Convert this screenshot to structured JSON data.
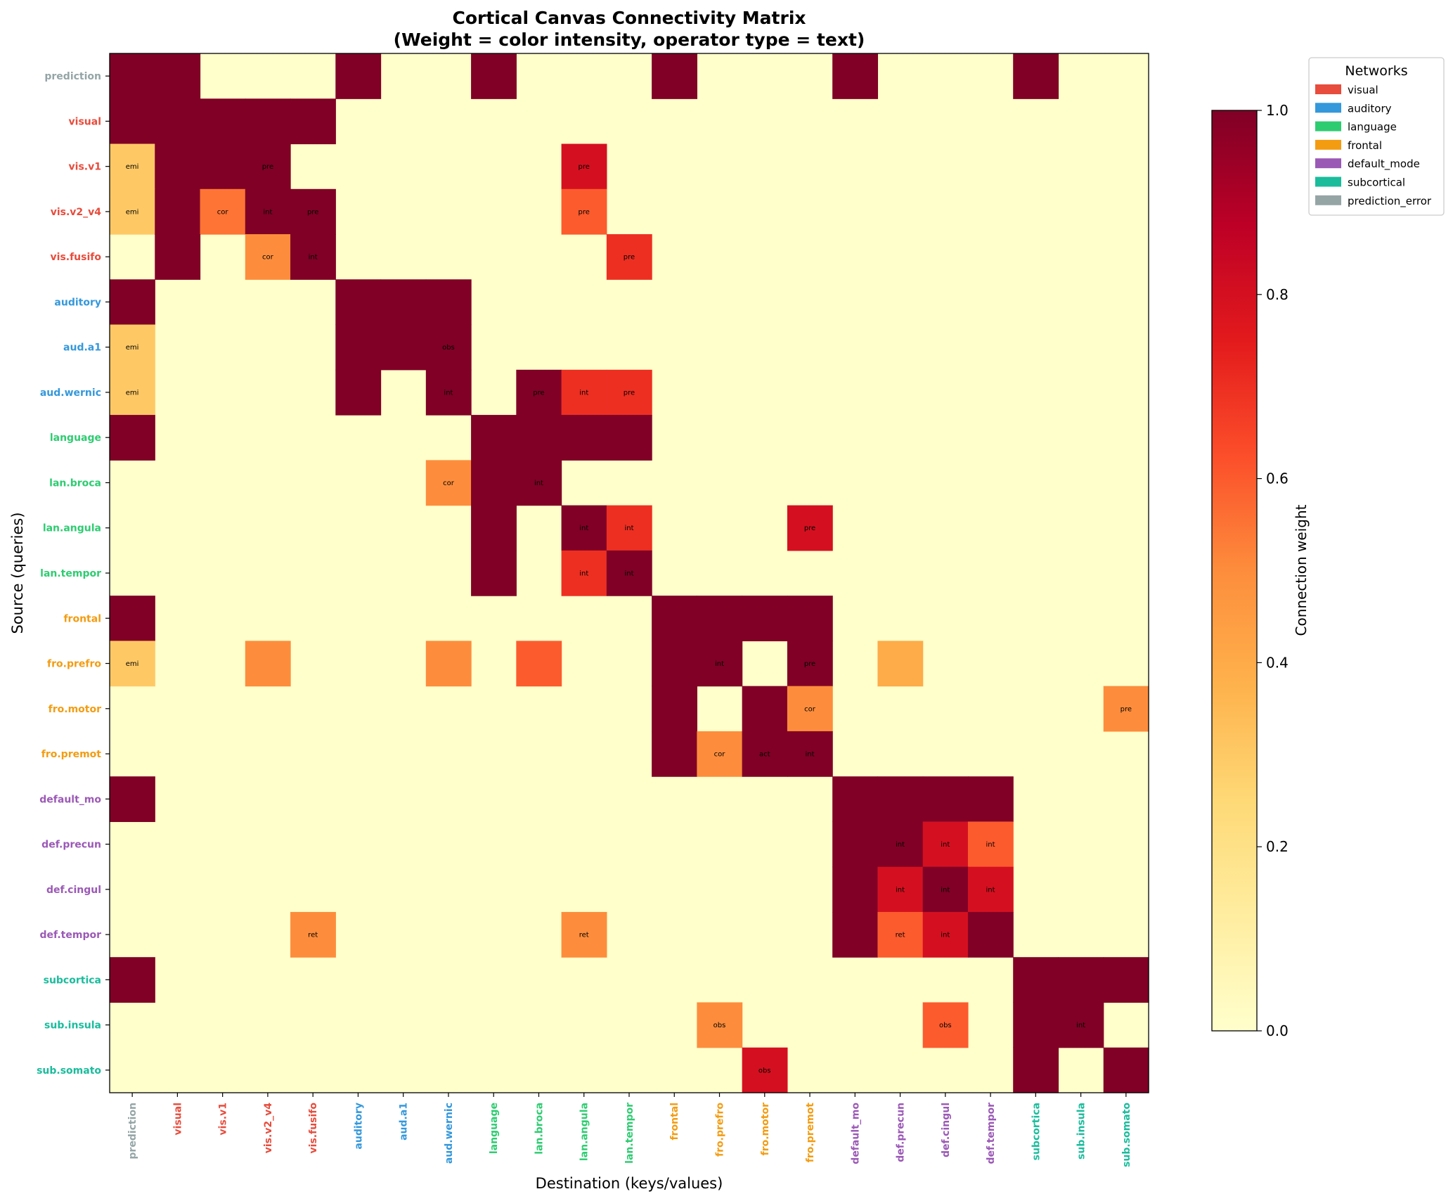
{
  "chart_data": {
    "type": "heatmap",
    "title_line1": "Cortical Canvas Connectivity Matrix",
    "title_line2": "(Weight = color intensity, operator type = text)",
    "xlabel": "Destination (keys/values)",
    "ylabel": "Source (queries)",
    "labels": [
      "prediction",
      "visual",
      "vis.v1",
      "vis.v2_v4",
      "vis.fusifo",
      "auditory",
      "aud.a1",
      "aud.wernic",
      "language",
      "lan.broca",
      "lan.angula",
      "lan.tempor",
      "frontal",
      "fro.prefro",
      "fro.motor",
      "fro.premot",
      "default_mo",
      "def.precun",
      "def.cingul",
      "def.tempor",
      "subcortica",
      "sub.insula",
      "sub.somato"
    ],
    "label_network": [
      6,
      0,
      0,
      0,
      0,
      1,
      1,
      1,
      2,
      2,
      2,
      2,
      3,
      3,
      3,
      3,
      4,
      4,
      4,
      4,
      5,
      5,
      5
    ],
    "networks": [
      {
        "name": "visual",
        "color": "#e74c3c"
      },
      {
        "name": "auditory",
        "color": "#3498db"
      },
      {
        "name": "language",
        "color": "#2ecc71"
      },
      {
        "name": "frontal",
        "color": "#f39c12"
      },
      {
        "name": "default_mode",
        "color": "#9b59b6"
      },
      {
        "name": "subcortical",
        "color": "#1abc9c"
      },
      {
        "name": "prediction_error",
        "color": "#95a5a6"
      }
    ],
    "legend_title": "Networks",
    "legend_position": "upper-right-outside",
    "colorbar": {
      "label": "Connection weight",
      "range": [
        0,
        1
      ],
      "ticks": [
        "0.0",
        "0.2",
        "0.4",
        "0.6",
        "0.8",
        "1.0"
      ],
      "colormap": "YlOrRd"
    },
    "cells": [
      {
        "r": 0,
        "c": 0,
        "v": 1
      },
      {
        "r": 0,
        "c": 1,
        "v": 1
      },
      {
        "r": 0,
        "c": 5,
        "v": 1
      },
      {
        "r": 0,
        "c": 8,
        "v": 1
      },
      {
        "r": 0,
        "c": 12,
        "v": 1
      },
      {
        "r": 0,
        "c": 16,
        "v": 1
      },
      {
        "r": 0,
        "c": 20,
        "v": 1
      },
      {
        "r": 1,
        "c": 0,
        "v": 1
      },
      {
        "r": 1,
        "c": 1,
        "v": 1
      },
      {
        "r": 1,
        "c": 2,
        "v": 1
      },
      {
        "r": 1,
        "c": 3,
        "v": 1
      },
      {
        "r": 1,
        "c": 4,
        "v": 1
      },
      {
        "r": 2,
        "c": 0,
        "v": 0.3,
        "t": "emi"
      },
      {
        "r": 2,
        "c": 1,
        "v": 1
      },
      {
        "r": 2,
        "c": 2,
        "v": 1
      },
      {
        "r": 2,
        "c": 3,
        "v": 1,
        "t": "pre"
      },
      {
        "r": 2,
        "c": 10,
        "v": 0.8,
        "t": "pre"
      },
      {
        "r": 3,
        "c": 0,
        "v": 0.3,
        "t": "emi"
      },
      {
        "r": 3,
        "c": 1,
        "v": 1
      },
      {
        "r": 3,
        "c": 2,
        "v": 0.55,
        "t": "cor"
      },
      {
        "r": 3,
        "c": 3,
        "v": 1,
        "t": "int"
      },
      {
        "r": 3,
        "c": 4,
        "v": 1,
        "t": "pre"
      },
      {
        "r": 3,
        "c": 10,
        "v": 0.6,
        "t": "pre"
      },
      {
        "r": 4,
        "c": 1,
        "v": 1
      },
      {
        "r": 4,
        "c": 3,
        "v": 0.5,
        "t": "cor"
      },
      {
        "r": 4,
        "c": 4,
        "v": 1,
        "t": "int"
      },
      {
        "r": 4,
        "c": 11,
        "v": 0.7,
        "t": "pre"
      },
      {
        "r": 5,
        "c": 0,
        "v": 1
      },
      {
        "r": 5,
        "c": 5,
        "v": 1
      },
      {
        "r": 5,
        "c": 6,
        "v": 1
      },
      {
        "r": 5,
        "c": 7,
        "v": 1
      },
      {
        "r": 6,
        "c": 0,
        "v": 0.3,
        "t": "emi"
      },
      {
        "r": 6,
        "c": 5,
        "v": 1
      },
      {
        "r": 6,
        "c": 6,
        "v": 1
      },
      {
        "r": 6,
        "c": 7,
        "v": 1,
        "t": "obs"
      },
      {
        "r": 7,
        "c": 0,
        "v": 0.3,
        "t": "emi"
      },
      {
        "r": 7,
        "c": 5,
        "v": 1
      },
      {
        "r": 7,
        "c": 7,
        "v": 1,
        "t": "int"
      },
      {
        "r": 7,
        "c": 9,
        "v": 1,
        "t": "pre"
      },
      {
        "r": 7,
        "c": 10,
        "v": 0.7,
        "t": "int"
      },
      {
        "r": 7,
        "c": 11,
        "v": 0.7,
        "t": "pre"
      },
      {
        "r": 8,
        "c": 0,
        "v": 1
      },
      {
        "r": 8,
        "c": 8,
        "v": 1
      },
      {
        "r": 8,
        "c": 9,
        "v": 1
      },
      {
        "r": 8,
        "c": 10,
        "v": 1
      },
      {
        "r": 8,
        "c": 11,
        "v": 1
      },
      {
        "r": 9,
        "c": 7,
        "v": 0.5,
        "t": "cor"
      },
      {
        "r": 9,
        "c": 8,
        "v": 1
      },
      {
        "r": 9,
        "c": 9,
        "v": 1,
        "t": "int"
      },
      {
        "r": 10,
        "c": 8,
        "v": 1
      },
      {
        "r": 10,
        "c": 10,
        "v": 1,
        "t": "int"
      },
      {
        "r": 10,
        "c": 11,
        "v": 0.7,
        "t": "int"
      },
      {
        "r": 10,
        "c": 15,
        "v": 0.8,
        "t": "pre"
      },
      {
        "r": 11,
        "c": 8,
        "v": 1
      },
      {
        "r": 11,
        "c": 10,
        "v": 0.7,
        "t": "int"
      },
      {
        "r": 11,
        "c": 11,
        "v": 1,
        "t": "int"
      },
      {
        "r": 12,
        "c": 0,
        "v": 1
      },
      {
        "r": 12,
        "c": 12,
        "v": 1
      },
      {
        "r": 12,
        "c": 13,
        "v": 1
      },
      {
        "r": 12,
        "c": 14,
        "v": 1
      },
      {
        "r": 12,
        "c": 15,
        "v": 1
      },
      {
        "r": 13,
        "c": 0,
        "v": 0.3,
        "t": "emi"
      },
      {
        "r": 13,
        "c": 3,
        "v": 0.5
      },
      {
        "r": 13,
        "c": 7,
        "v": 0.5
      },
      {
        "r": 13,
        "c": 9,
        "v": 0.6
      },
      {
        "r": 13,
        "c": 12,
        "v": 1
      },
      {
        "r": 13,
        "c": 13,
        "v": 1,
        "t": "int"
      },
      {
        "r": 13,
        "c": 15,
        "v": 1,
        "t": "pre"
      },
      {
        "r": 13,
        "c": 17,
        "v": 0.4
      },
      {
        "r": 14,
        "c": 12,
        "v": 1
      },
      {
        "r": 14,
        "c": 14,
        "v": 1
      },
      {
        "r": 14,
        "c": 15,
        "v": 0.5,
        "t": "cor"
      },
      {
        "r": 14,
        "c": 22,
        "v": 0.5,
        "t": "pre"
      },
      {
        "r": 15,
        "c": 12,
        "v": 1
      },
      {
        "r": 15,
        "c": 13,
        "v": 0.5,
        "t": "cor"
      },
      {
        "r": 15,
        "c": 14,
        "v": 1,
        "t": "act"
      },
      {
        "r": 15,
        "c": 15,
        "v": 1,
        "t": "int"
      },
      {
        "r": 16,
        "c": 0,
        "v": 1
      },
      {
        "r": 16,
        "c": 16,
        "v": 1
      },
      {
        "r": 16,
        "c": 17,
        "v": 1
      },
      {
        "r": 16,
        "c": 18,
        "v": 1
      },
      {
        "r": 16,
        "c": 19,
        "v": 1
      },
      {
        "r": 17,
        "c": 16,
        "v": 1
      },
      {
        "r": 17,
        "c": 17,
        "v": 1,
        "t": "int"
      },
      {
        "r": 17,
        "c": 18,
        "v": 0.8,
        "t": "int"
      },
      {
        "r": 17,
        "c": 19,
        "v": 0.6,
        "t": "int"
      },
      {
        "r": 18,
        "c": 16,
        "v": 1
      },
      {
        "r": 18,
        "c": 17,
        "v": 0.8,
        "t": "int"
      },
      {
        "r": 18,
        "c": 18,
        "v": 1,
        "t": "int"
      },
      {
        "r": 18,
        "c": 19,
        "v": 0.8,
        "t": "int"
      },
      {
        "r": 19,
        "c": 4,
        "v": 0.5,
        "t": "ret"
      },
      {
        "r": 19,
        "c": 10,
        "v": 0.5,
        "t": "ret"
      },
      {
        "r": 19,
        "c": 16,
        "v": 1
      },
      {
        "r": 19,
        "c": 17,
        "v": 0.6,
        "t": "ret"
      },
      {
        "r": 19,
        "c": 18,
        "v": 0.8,
        "t": "int"
      },
      {
        "r": 19,
        "c": 19,
        "v": 1
      },
      {
        "r": 20,
        "c": 0,
        "v": 1
      },
      {
        "r": 20,
        "c": 20,
        "v": 1
      },
      {
        "r": 20,
        "c": 21,
        "v": 1
      },
      {
        "r": 20,
        "c": 22,
        "v": 1
      },
      {
        "r": 21,
        "c": 13,
        "v": 0.5,
        "t": "obs"
      },
      {
        "r": 21,
        "c": 18,
        "v": 0.6,
        "t": "obs"
      },
      {
        "r": 21,
        "c": 20,
        "v": 1
      },
      {
        "r": 21,
        "c": 21,
        "v": 1,
        "t": "int"
      },
      {
        "r": 22,
        "c": 14,
        "v": 0.8,
        "t": "obs"
      },
      {
        "r": 22,
        "c": 20,
        "v": 1
      },
      {
        "r": 22,
        "c": 22,
        "v": 1
      }
    ]
  }
}
